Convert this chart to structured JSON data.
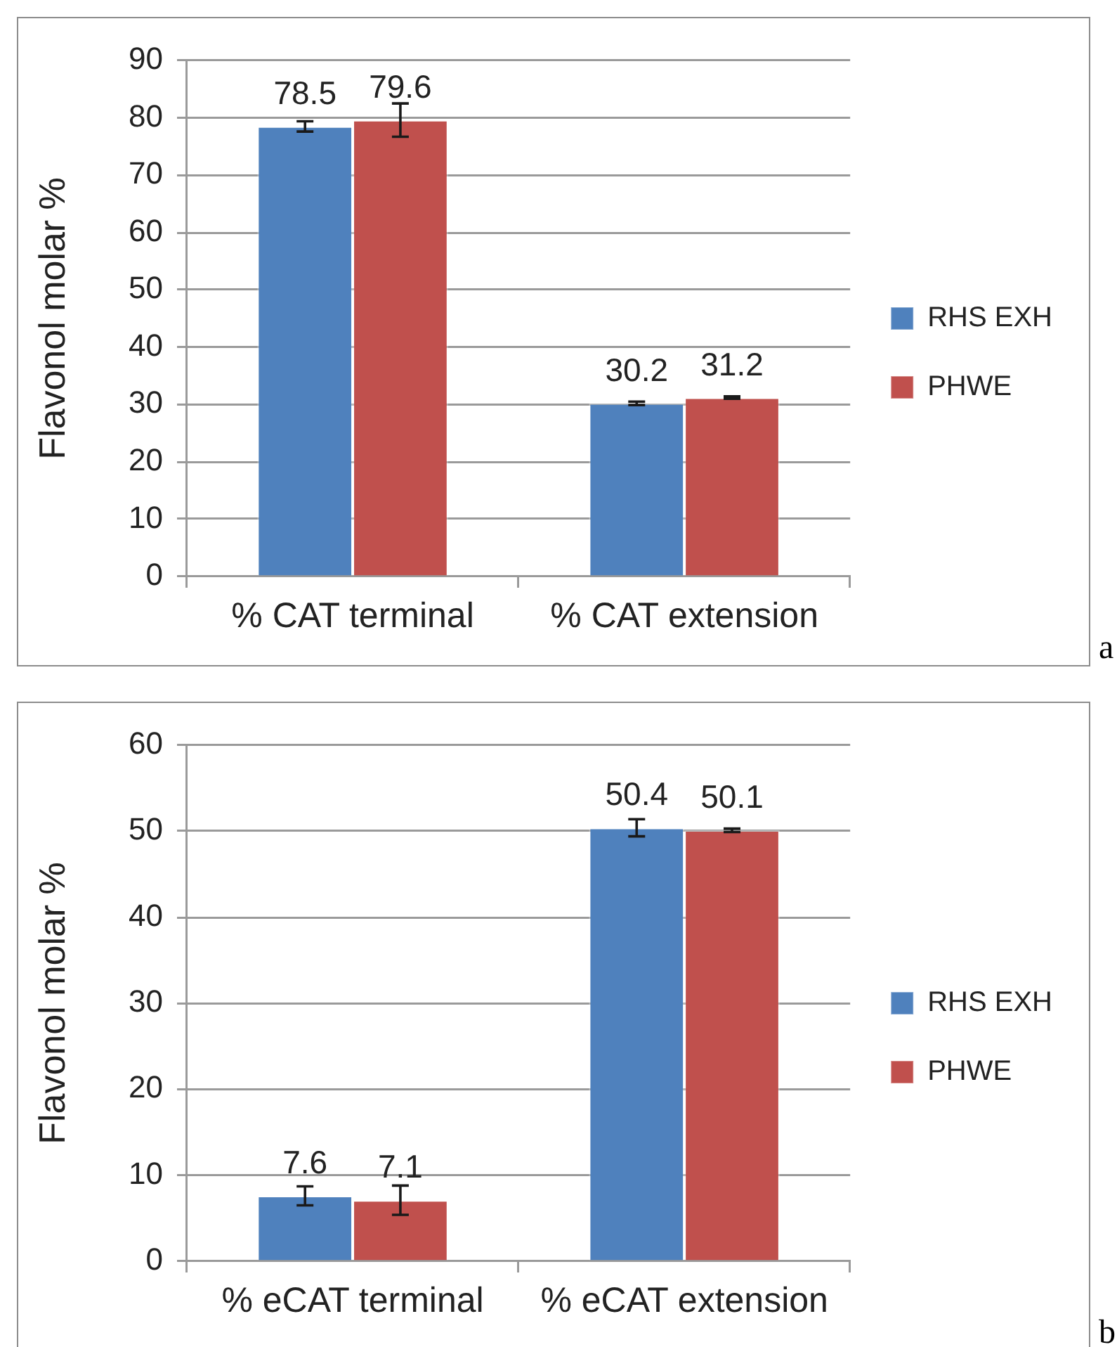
{
  "chart_data": [
    {
      "type": "bar",
      "ylabel": "Flavonol molar %",
      "categories": [
        "% CAT terminal",
        "% CAT extension"
      ],
      "series": [
        {
          "name": "RHS EXH",
          "color": "#4f81bd",
          "values": [
            78.5,
            30.2
          ],
          "errors": [
            0.9,
            0.3
          ]
        },
        {
          "name": "PHWE",
          "color": "#c0504d",
          "values": [
            79.6,
            31.2
          ],
          "errors": [
            2.9,
            0.2
          ]
        }
      ],
      "ylim": [
        0,
        90
      ],
      "yticks": [
        0,
        10,
        20,
        30,
        40,
        50,
        60,
        70,
        80,
        90
      ],
      "grid": "y",
      "legend": "right",
      "data_labels": true,
      "annotations": [
        "a"
      ]
    },
    {
      "type": "bar",
      "ylabel": "Flavonol molar %",
      "categories": [
        "% eCAT terminal",
        "% eCAT extension"
      ],
      "series": [
        {
          "name": "RHS EXH",
          "color": "#4f81bd",
          "values": [
            7.6,
            50.4
          ],
          "errors": [
            1.1,
            1.0
          ]
        },
        {
          "name": "PHWE",
          "color": "#c0504d",
          "values": [
            7.1,
            50.1
          ],
          "errors": [
            1.7,
            0.2
          ]
        }
      ],
      "ylim": [
        0,
        60
      ],
      "yticks": [
        0,
        10,
        20,
        30,
        40,
        50,
        60
      ],
      "grid": "y",
      "legend": "right",
      "data_labels": true,
      "annotations": [
        "b"
      ]
    }
  ]
}
